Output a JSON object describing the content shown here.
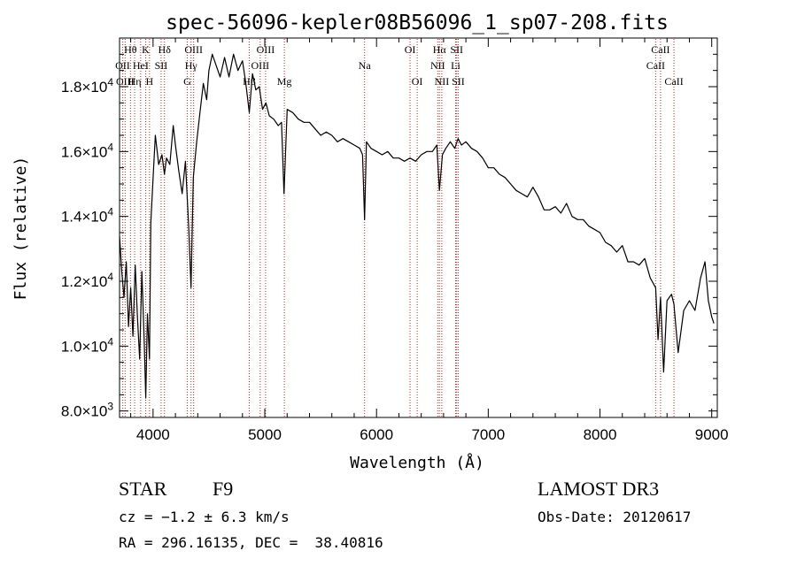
{
  "chart_data": {
    "type": "line",
    "title": "spec-56096-kepler08B56096_1_sp07-208.fits",
    "xlabel": "Wavelength (Å)",
    "ylabel": "Flux (relative)",
    "xlim": [
      3700,
      9050
    ],
    "ylim": [
      7800,
      19500
    ],
    "x_ticks": [
      {
        "value": 4000,
        "label": "4000"
      },
      {
        "value": 5000,
        "label": "5000"
      },
      {
        "value": 6000,
        "label": "6000"
      },
      {
        "value": 7000,
        "label": "7000"
      },
      {
        "value": 8000,
        "label": "8000"
      },
      {
        "value": 9000,
        "label": "9000"
      }
    ],
    "y_ticks": [
      {
        "value": 8000,
        "mant": "8.0",
        "exp": "3"
      },
      {
        "value": 10000,
        "mant": "1.0",
        "exp": "4"
      },
      {
        "value": 12000,
        "mant": "1.2",
        "exp": "4"
      },
      {
        "value": 14000,
        "mant": "1.4",
        "exp": "4"
      },
      {
        "value": 16000,
        "mant": "1.6",
        "exp": "4"
      },
      {
        "value": 18000,
        "mant": "1.8",
        "exp": "4"
      }
    ],
    "series": [
      {
        "name": "spectrum",
        "x": [
          3700,
          3720,
          3740,
          3760,
          3780,
          3800,
          3820,
          3840,
          3860,
          3880,
          3900,
          3920,
          3935,
          3950,
          3968,
          3980,
          4000,
          4020,
          4050,
          4080,
          4102,
          4120,
          4150,
          4180,
          4200,
          4230,
          4260,
          4290,
          4320,
          4340,
          4360,
          4390,
          4420,
          4450,
          4480,
          4500,
          4530,
          4560,
          4600,
          4640,
          4680,
          4720,
          4760,
          4800,
          4830,
          4861,
          4890,
          4920,
          4950,
          4980,
          5010,
          5040,
          5080,
          5120,
          5150,
          5172,
          5200,
          5250,
          5300,
          5350,
          5400,
          5450,
          5500,
          5550,
          5600,
          5650,
          5700,
          5750,
          5800,
          5850,
          5875,
          5893,
          5910,
          5950,
          6000,
          6050,
          6100,
          6150,
          6200,
          6250,
          6300,
          6350,
          6400,
          6450,
          6500,
          6540,
          6563,
          6590,
          6620,
          6660,
          6700,
          6730,
          6760,
          6800,
          6850,
          6900,
          6950,
          7000,
          7050,
          7100,
          7150,
          7200,
          7250,
          7300,
          7350,
          7400,
          7450,
          7500,
          7550,
          7600,
          7650,
          7700,
          7750,
          7800,
          7850,
          7900,
          7950,
          8000,
          8050,
          8100,
          8150,
          8200,
          8250,
          8300,
          8350,
          8400,
          8450,
          8498,
          8520,
          8542,
          8570,
          8600,
          8640,
          8662,
          8700,
          8750,
          8800,
          8850,
          8900,
          8940,
          8970,
          9000,
          9020
        ],
        "values": [
          13400,
          12300,
          11500,
          12600,
          10600,
          11800,
          10300,
          12500,
          10900,
          9600,
          12300,
          10200,
          8400,
          11000,
          9600,
          13800,
          15200,
          16500,
          15600,
          15900,
          15300,
          15800,
          15600,
          16800,
          16200,
          15400,
          14700,
          15700,
          13600,
          11800,
          15200,
          16300,
          17200,
          18100,
          17600,
          18500,
          19000,
          18700,
          18300,
          18900,
          18300,
          19000,
          18500,
          18800,
          18100,
          17200,
          18400,
          17900,
          18000,
          17300,
          17500,
          17100,
          17000,
          16800,
          16900,
          14700,
          17300,
          17200,
          17000,
          16900,
          16900,
          16700,
          16500,
          16600,
          16500,
          16300,
          16400,
          16300,
          16200,
          16100,
          15900,
          13900,
          16300,
          16100,
          16000,
          15900,
          16000,
          15800,
          15800,
          15700,
          15800,
          15700,
          15900,
          16000,
          16000,
          16200,
          14800,
          15900,
          16100,
          16300,
          16100,
          16400,
          16200,
          16300,
          16100,
          16000,
          15800,
          15500,
          15500,
          15300,
          15200,
          15000,
          14800,
          14700,
          14600,
          14900,
          14600,
          14200,
          14200,
          14300,
          14100,
          14400,
          14000,
          13900,
          13900,
          13700,
          13600,
          13500,
          13200,
          13100,
          12900,
          13100,
          12600,
          12600,
          12500,
          12700,
          12100,
          11800,
          10200,
          11500,
          9200,
          11400,
          11600,
          11300,
          9800,
          11100,
          11400,
          11100,
          12100,
          12600,
          11400,
          10900,
          10700
        ]
      }
    ],
    "lines": [
      {
        "name": "Hθ",
        "x": 3798,
        "tier": 1
      },
      {
        "name": "OII",
        "x": 3727,
        "tier": 2
      },
      {
        "name": "OIII",
        "x": 3750,
        "tier": 3
      },
      {
        "name": "K",
        "x": 3934,
        "tier": 1
      },
      {
        "name": "HeI",
        "x": 3889,
        "tier": 2
      },
      {
        "name": "Hη",
        "x": 3835,
        "tier": 3
      },
      {
        "name": "Hδ",
        "x": 4102,
        "tier": 1
      },
      {
        "name": "SII",
        "x": 4072,
        "tier": 2
      },
      {
        "name": "H",
        "x": 3968,
        "tier": 3
      },
      {
        "name": "OIII",
        "x": 4363,
        "tier": 1
      },
      {
        "name": "Hγ",
        "x": 4340,
        "tier": 2
      },
      {
        "name": "G",
        "x": 4306,
        "tier": 3
      },
      {
        "name": "OIII",
        "x": 5007,
        "tier": 1
      },
      {
        "name": "OIII",
        "x": 4959,
        "tier": 2
      },
      {
        "name": "Hβ",
        "x": 4861,
        "tier": 3
      },
      {
        "name": "Mg",
        "x": 5175,
        "tier": 3
      },
      {
        "name": "Na",
        "x": 5893,
        "tier": 2
      },
      {
        "name": "OI",
        "x": 6300,
        "tier": 1
      },
      {
        "name": "OI",
        "x": 6364,
        "tier": 3
      },
      {
        "name": "Hα",
        "x": 6563,
        "tier": 1
      },
      {
        "name": "NII",
        "x": 6548,
        "tier": 2
      },
      {
        "name": "NII",
        "x": 6584,
        "tier": 3
      },
      {
        "name": "SII",
        "x": 6717,
        "tier": 1
      },
      {
        "name": "Li",
        "x": 6708,
        "tier": 2
      },
      {
        "name": "SII",
        "x": 6731,
        "tier": 3
      },
      {
        "name": "CaII",
        "x": 8542,
        "tier": 1
      },
      {
        "name": "CaII",
        "x": 8498,
        "tier": 2
      },
      {
        "name": "CaII",
        "x": 8662,
        "tier": 3
      }
    ],
    "annotations": {
      "object_type": "STAR",
      "subclass": "F9",
      "survey": "LAMOST DR3",
      "cz": "cz = −1.2 ± 6.3 km/s",
      "obs_date": "Obs-Date: 20120617",
      "coords": "RA = 296.16135, DEC =  38.40816"
    },
    "colors": {
      "spectrum": "#000000",
      "line_marker": "#cc2222",
      "text": "#000000"
    }
  }
}
